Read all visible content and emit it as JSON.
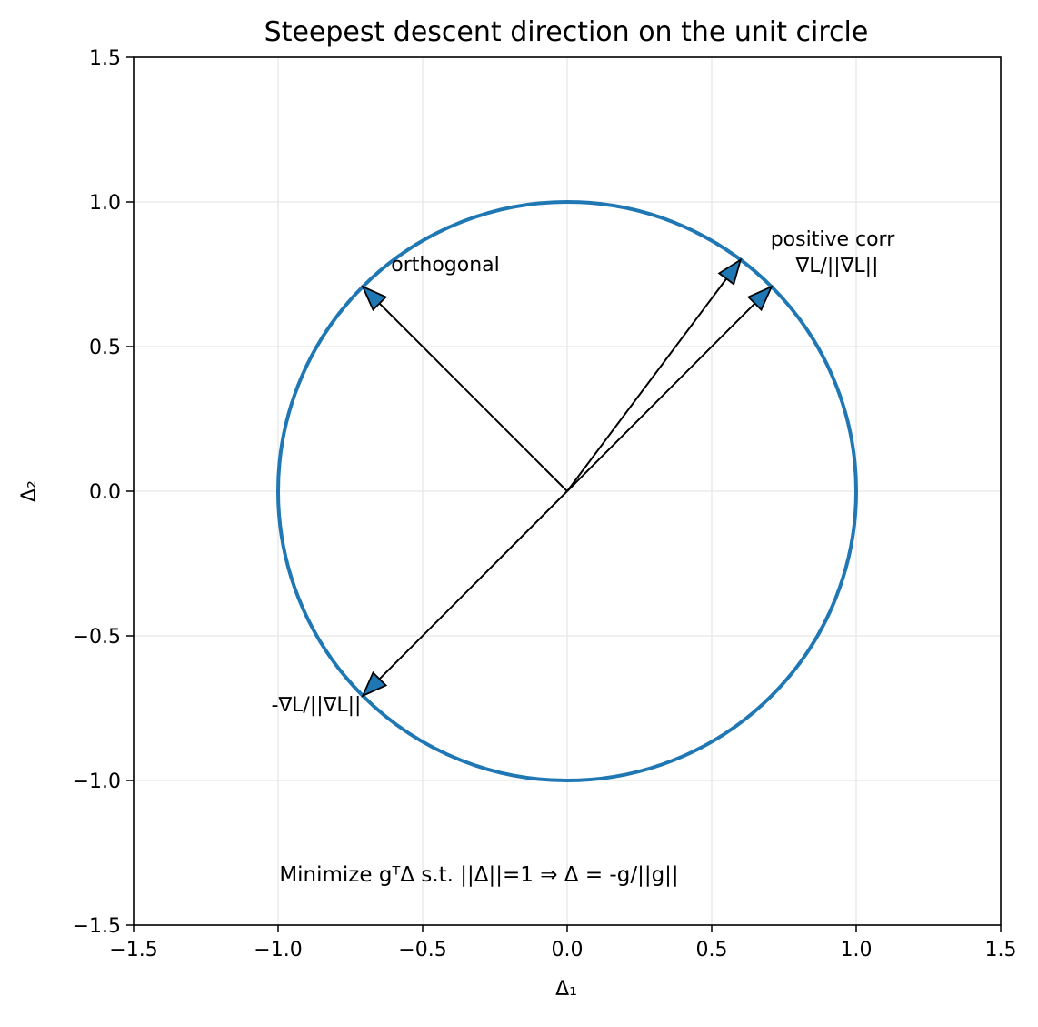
{
  "chart_data": {
    "type": "scatter",
    "title": "Steepest descent direction on the unit circle",
    "xlabel": "Δ₁",
    "ylabel": "Δ₂",
    "xlim": [
      -1.5,
      1.5
    ],
    "ylim": [
      -1.5,
      1.5
    ],
    "grid": true,
    "x_ticks": [
      -1.5,
      -1.0,
      -0.5,
      0.0,
      0.5,
      1.0,
      1.5
    ],
    "y_ticks": [
      -1.5,
      -1.0,
      -0.5,
      0.0,
      0.5,
      1.0,
      1.5
    ],
    "x_tick_labels": [
      "−1.5",
      "−1.0",
      "−0.5",
      "0.0",
      "0.5",
      "1.0",
      "1.5"
    ],
    "y_tick_labels": [
      "−1.5",
      "−1.0",
      "−0.5",
      "0.0",
      "0.5",
      "1.0",
      "1.5"
    ],
    "unit_circle": {
      "center": [
        0,
        0
      ],
      "radius": 1,
      "color": "#1f77b4"
    },
    "vectors": [
      {
        "name": "gradient",
        "x": 0.7071,
        "y": 0.7071
      },
      {
        "name": "negative-gradient",
        "x": -0.7071,
        "y": -0.7071
      },
      {
        "name": "orthogonal",
        "x": -0.7071,
        "y": 0.7071
      },
      {
        "name": "positive-corr",
        "x": 0.6,
        "y": 0.8
      }
    ],
    "arrow_color": "#1f77b4",
    "annotations": {
      "gradient": "∇L/||∇L||",
      "negative_gradient": "-∇L/||∇L||",
      "orthogonal": "orthogonal",
      "positive_corr": "positive corr"
    },
    "note": "Minimize gᵀΔ s.t. ||Δ||=1  ⇒  Δ = -g/||g||"
  }
}
